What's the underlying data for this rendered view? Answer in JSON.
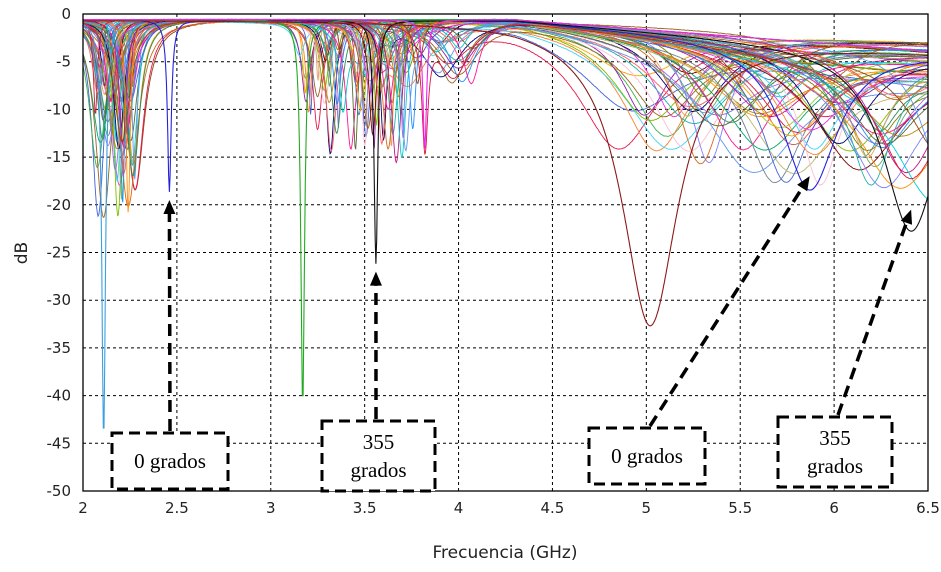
{
  "chart_data": {
    "type": "line",
    "title": "",
    "xlabel": "Frecuencia (GHz)",
    "ylabel": "dB",
    "xlim": [
      2,
      6.5
    ],
    "ylim": [
      -50,
      0
    ],
    "xticks": [
      "2",
      "2.5",
      "3",
      "3.5",
      "4",
      "4.5",
      "5",
      "5.5",
      "6",
      "6.5"
    ],
    "yticks": [
      "0",
      "-5",
      "-10",
      "-15",
      "-20",
      "-25",
      "-30",
      "-35",
      "-40",
      "-45",
      "-50"
    ],
    "grid": true,
    "legend": "none",
    "series_note_count": 72,
    "highlighted_series": [
      {
        "color": "#2222dd",
        "dips": [
          [
            2.46,
            -19
          ],
          [
            5.87,
            -16.5
          ]
        ]
      },
      {
        "color": "#111111",
        "dips": [
          [
            3.56,
            -26.5
          ],
          [
            6.41,
            -20
          ]
        ]
      },
      {
        "color": "#3b9fe0",
        "dips": [
          [
            2.11,
            -45
          ]
        ]
      },
      {
        "color": "#22aa22",
        "dips": [
          [
            3.17,
            -41.5
          ]
        ]
      },
      {
        "color": "#8b1a1a",
        "dips": [
          [
            5.02,
            -32
          ]
        ]
      },
      {
        "color": "#ee22ee",
        "dips": [
          [
            3.82,
            -14.5
          ]
        ]
      }
    ],
    "annotations": [
      {
        "text": [
          "0 grados"
        ],
        "target": [
          2.46,
          -19.5
        ]
      },
      {
        "text": [
          "355",
          "grados"
        ],
        "target": [
          3.56,
          -27
        ]
      },
      {
        "text": [
          "0 grados"
        ],
        "target": [
          5.87,
          -17
        ]
      },
      {
        "text": [
          "355",
          "grados"
        ],
        "target": [
          6.41,
          -20.5
        ]
      }
    ]
  }
}
